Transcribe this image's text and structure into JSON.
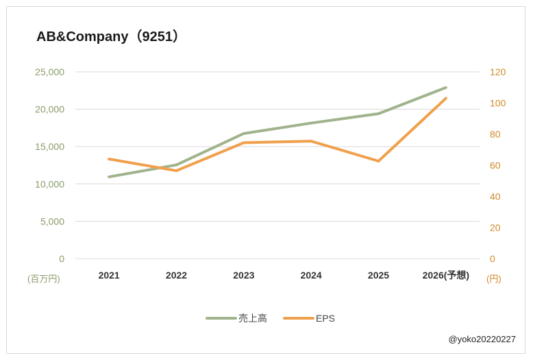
{
  "chart_data": {
    "type": "line",
    "title": "AB&Company（9251）",
    "categories": [
      "2021",
      "2022",
      "2023",
      "2024",
      "2025",
      "2026(予想)"
    ],
    "y_left": {
      "unit": "(百万円)",
      "range": [
        0,
        25000
      ],
      "ticks": [
        "0",
        "5,000",
        "10,000",
        "15,000",
        "20,000",
        "25,000"
      ]
    },
    "y_right": {
      "unit": "(円)",
      "range": [
        0,
        120
      ],
      "ticks": [
        "0",
        "20",
        "40",
        "60",
        "80",
        "100",
        "120"
      ]
    },
    "series": [
      {
        "name": "売上高",
        "axis": "left",
        "color": "#a0b38c",
        "values": [
          10950,
          12550,
          16750,
          18150,
          19400,
          22900
        ]
      },
      {
        "name": "EPS",
        "axis": "right",
        "color": "#f0a04c",
        "values": [
          64,
          56.5,
          74.5,
          75.5,
          62.7,
          103
        ]
      }
    ],
    "grid": "horizontal",
    "legend": "bottom-center"
  },
  "credit": "@yoko20220227"
}
